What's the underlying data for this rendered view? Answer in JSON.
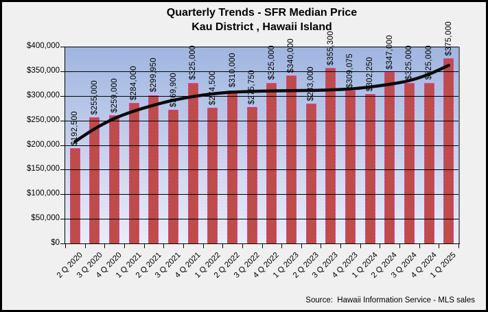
{
  "title": {
    "line1": "Quarterly Trends - SFR Median Price",
    "line2": "Kau District , Hawaii Island"
  },
  "source": "Source:  Hawaii Information Service - MLS sales",
  "colors": {
    "background": "#F0F0F0",
    "outer_border": "#000000",
    "plot_gradient_top": "#9FB5E0",
    "plot_gradient_bottom": "#E9EDF8",
    "plot_right_border": "#6F6F6F",
    "gridline": "#000000",
    "bar_fill": "#BE4C49",
    "bar_border": "#EE3EC8",
    "trend_line": "#0B0B0B",
    "text": "#000000"
  },
  "chart_data": {
    "type": "bar",
    "title": "Quarterly Trends - SFR Median Price / Kau District , Hawaii Island",
    "xlabel": "",
    "ylabel": "",
    "ylim": [
      0,
      400000
    ],
    "y_tick_step": 50000,
    "y_tick_labels": [
      "$400,000",
      "$350,000",
      "$300,000",
      "$250,000",
      "$200,000",
      "$150,000",
      "$100,000",
      "$50,000",
      "$0"
    ],
    "grid": true,
    "legend": false,
    "categories": [
      "2 Q 2020",
      "3 Q 2020",
      "4 Q 2020",
      "1 Q 2021",
      "2 Q 2021",
      "3 Q 2021",
      "4 Q 2021",
      "1 Q 2022",
      "2 Q 2022",
      "3 Q 2022",
      "4 Q 2022",
      "1 Q 2023",
      "2 Q 2023",
      "3 Q 2023",
      "4 Q 2023",
      "1 Q 2024",
      "2 Q 2024",
      "3 Q 2024",
      "4 Q 2024",
      "1 Q 2025"
    ],
    "values": [
      192500,
      255000,
      259000,
      284000,
      299950,
      269900,
      325000,
      274500,
      310000,
      275750,
      325000,
      340000,
      283000,
      355300,
      309075,
      302250,
      347000,
      325000,
      325000,
      375000
    ],
    "bar_labels": [
      "$192,500",
      "$255,000",
      "$259,000",
      "$284,000",
      "$299,950",
      "$269,900",
      "$325,000",
      "$274,500",
      "$310,000",
      "$275,750",
      "$325,000",
      "$340,000",
      "$283,000",
      "$355,300",
      "$309,075",
      "$302,250",
      "$347,000",
      "$325,000",
      "$325,000",
      "$375,000"
    ],
    "trendline": {
      "style": "smooth-black",
      "values": [
        207000,
        233000,
        254000,
        269000,
        281000,
        291000,
        298500,
        304000,
        307500,
        309000,
        310000,
        310500,
        311000,
        312000,
        314000,
        318000,
        323500,
        331000,
        344000,
        362000
      ]
    }
  }
}
